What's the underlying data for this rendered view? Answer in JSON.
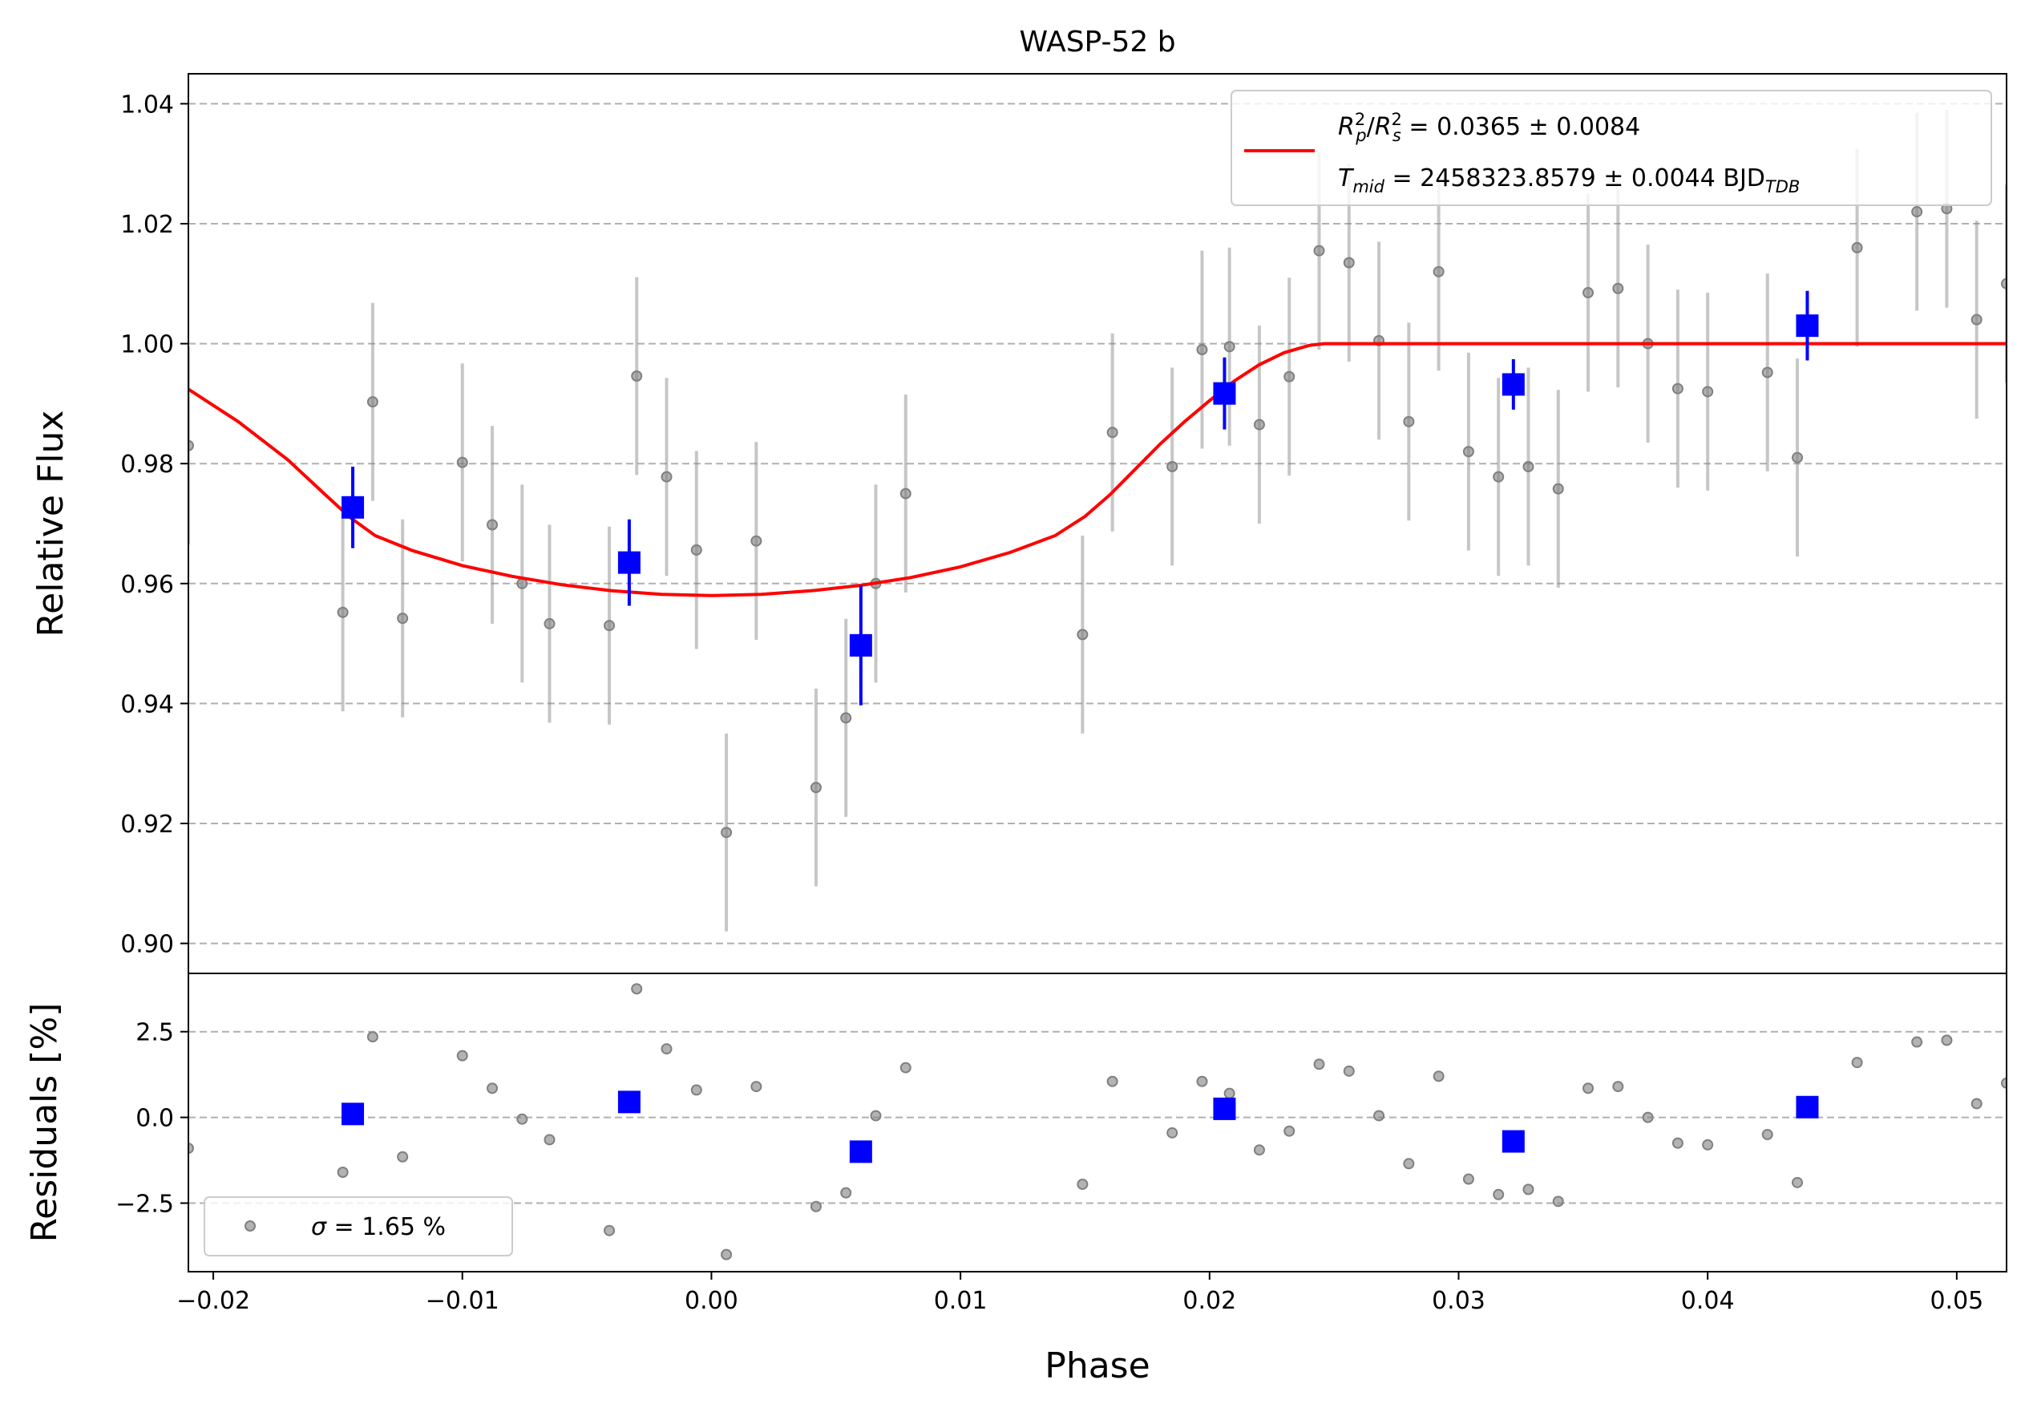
{
  "chart_data": [
    {
      "type": "scatter",
      "panel": "main",
      "title": "WASP-52 b",
      "xlabel": "",
      "ylabel": "Relative Flux",
      "xlim": [
        -0.021,
        0.052
      ],
      "ylim": [
        0.895,
        1.045
      ],
      "grid": "horizontal dashed",
      "y_ticks": [
        "0.90",
        "0.92",
        "0.94",
        "0.96",
        "0.98",
        "1.00",
        "1.02",
        "1.04"
      ],
      "y_tick_values": [
        0.9,
        0.92,
        0.94,
        0.96,
        0.98,
        1.0,
        1.02,
        1.04
      ],
      "legend": {
        "placement": "top-right",
        "entries": [
          {
            "color": "#ff0000",
            "rp_symbol": "R",
            "rp_sup": "2",
            "rp_sub": "p",
            "slash": "/",
            "rs_symbol": "R",
            "rs_sup": "2",
            "rs_sub": "s",
            "value": " = 0.0365 ± 0.0084"
          },
          {
            "t_symbol": "T",
            "t_sub": "mid",
            "value": " = 2458323.8579 ± 0.0044 BJD",
            "unit_sub": "TDB"
          }
        ]
      },
      "series": [
        {
          "kind": "raw",
          "color": "#808080",
          "x": [
            -0.021,
            -0.0148,
            -0.0136,
            -0.0124,
            -0.01,
            -0.0088,
            -0.0076,
            -0.0065,
            -0.0041,
            -0.003,
            -0.0018,
            -0.0006,
            0.0006,
            0.0018,
            0.0042,
            0.0054,
            0.0066,
            0.0078,
            0.0149,
            0.0161,
            0.0185,
            0.0197,
            0.0208,
            0.022,
            0.0232,
            0.0244,
            0.0256,
            0.0268,
            0.028,
            0.0292,
            0.0304,
            0.0316,
            0.0328,
            0.034,
            0.0352,
            0.0364,
            0.0376,
            0.0388,
            0.04,
            0.0424,
            0.0436,
            0.046,
            0.0484,
            0.0496,
            0.0508,
            0.052
          ],
          "y": [
            0.983,
            0.9552,
            0.9903,
            0.9542,
            0.9802,
            0.9698,
            0.96,
            0.9533,
            0.953,
            0.9946,
            0.9778,
            0.9656,
            0.9185,
            0.9671,
            0.926,
            0.9376,
            0.96,
            0.975,
            0.9515,
            0.9852,
            0.9795,
            0.999,
            0.9995,
            0.9865,
            0.9945,
            1.0155,
            1.0135,
            1.0005,
            0.987,
            1.012,
            0.982,
            0.9778,
            0.9795,
            0.9758,
            1.0085,
            1.0092,
            1.0,
            0.9925,
            0.992,
            0.9952,
            0.981,
            1.016,
            1.022,
            1.0225,
            1.004,
            1.01
          ],
          "yerr": [
            0.0165,
            0.0165,
            0.0165,
            0.0165,
            0.0165,
            0.0165,
            0.0165,
            0.0165,
            0.0165,
            0.0165,
            0.0165,
            0.0165,
            0.0165,
            0.0165,
            0.0165,
            0.0165,
            0.0165,
            0.0165,
            0.0165,
            0.0165,
            0.0165,
            0.0165,
            0.0165,
            0.0165,
            0.0165,
            0.0165,
            0.0165,
            0.0165,
            0.0165,
            0.0165,
            0.0165,
            0.0165,
            0.0165,
            0.0165,
            0.0165,
            0.0165,
            0.0165,
            0.0165,
            0.0165,
            0.0165,
            0.0165,
            0.0165,
            0.0165,
            0.0165,
            0.0165,
            0.0165
          ]
        },
        {
          "kind": "binned",
          "color": "#0000ff",
          "x": [
            -0.0144,
            -0.0033,
            0.006,
            0.0206,
            0.0322,
            0.044
          ],
          "y": [
            0.9727,
            0.9635,
            0.9497,
            0.9917,
            0.9932,
            1.003
          ],
          "yerr": [
            0.0068,
            0.0072,
            0.01,
            0.006,
            0.0042,
            0.0058
          ]
        },
        {
          "kind": "model",
          "color": "#ff0000",
          "x": [
            -0.021,
            -0.019,
            -0.017,
            -0.0155,
            -0.0145,
            -0.0135,
            -0.012,
            -0.01,
            -0.008,
            -0.006,
            -0.004,
            -0.002,
            0.0,
            0.002,
            0.004,
            0.006,
            0.008,
            0.01,
            0.012,
            0.0138,
            0.015,
            0.016,
            0.017,
            0.018,
            0.019,
            0.02,
            0.021,
            0.022,
            0.023,
            0.024,
            0.0246,
            0.03,
            0.04,
            0.052
          ],
          "y": [
            0.9924,
            0.987,
            0.9806,
            0.9748,
            0.971,
            0.968,
            0.9655,
            0.963,
            0.9612,
            0.9598,
            0.9588,
            0.9582,
            0.958,
            0.9582,
            0.9588,
            0.9597,
            0.961,
            0.9628,
            0.9652,
            0.968,
            0.9712,
            0.9748,
            0.979,
            0.9832,
            0.987,
            0.9905,
            0.9938,
            0.9965,
            0.9985,
            0.9997,
            1.0,
            1.0,
            1.0,
            1.0
          ]
        }
      ]
    },
    {
      "type": "scatter",
      "panel": "residuals",
      "xlabel": "Phase",
      "ylabel": "Residuals [%]",
      "xlim": [
        -0.021,
        0.052
      ],
      "ylim": [
        -4.5,
        4.2
      ],
      "grid": "horizontal dashed",
      "x_ticks": [
        "−0.02",
        "−0.01",
        "0.00",
        "0.01",
        "0.02",
        "0.03",
        "0.04",
        "0.05"
      ],
      "x_tick_values": [
        -0.02,
        -0.01,
        0.0,
        0.01,
        0.02,
        0.03,
        0.04,
        0.05
      ],
      "y_ticks": [
        "−2.5",
        "0.0",
        "2.5"
      ],
      "y_tick_values": [
        -2.5,
        0.0,
        2.5
      ],
      "legend": {
        "placement": "bottom-left",
        "sigma_symbol": "σ",
        "text": " = 1.65 %"
      },
      "series": [
        {
          "kind": "raw",
          "color": "#808080",
          "x": [
            -0.021,
            -0.0148,
            -0.0136,
            -0.0124,
            -0.01,
            -0.0088,
            -0.0076,
            -0.0065,
            -0.0041,
            -0.003,
            -0.0018,
            -0.0006,
            0.0006,
            0.0018,
            0.0042,
            0.0054,
            0.0066,
            0.0078,
            0.0149,
            0.0161,
            0.0185,
            0.0197,
            0.0208,
            0.022,
            0.0232,
            0.0244,
            0.0256,
            0.0268,
            0.028,
            0.0292,
            0.0304,
            0.0316,
            0.0328,
            0.034,
            0.0352,
            0.0364,
            0.0376,
            0.0388,
            0.04,
            0.0424,
            0.0436,
            0.046,
            0.0484,
            0.0496,
            0.0508,
            0.052
          ],
          "y": [
            -0.9,
            -1.6,
            2.35,
            -1.15,
            1.8,
            0.85,
            -0.05,
            -0.65,
            -3.3,
            3.75,
            2.0,
            0.8,
            -4.0,
            0.9,
            -2.6,
            -2.2,
            0.05,
            1.45,
            -1.95,
            1.05,
            -0.45,
            1.05,
            0.7,
            -0.95,
            -0.4,
            1.55,
            1.35,
            0.05,
            -1.35,
            1.2,
            -1.8,
            -2.25,
            -2.1,
            -2.45,
            0.85,
            0.9,
            0.0,
            -0.75,
            -0.8,
            -0.5,
            -1.9,
            1.6,
            2.2,
            2.25,
            0.4,
            1.0
          ]
        },
        {
          "kind": "binned",
          "color": "#0000ff",
          "x": [
            -0.0144,
            -0.0033,
            0.006,
            0.0206,
            0.0322,
            0.044
          ],
          "y": [
            0.1,
            0.45,
            -1.0,
            0.25,
            -0.7,
            0.3
          ]
        }
      ]
    }
  ]
}
